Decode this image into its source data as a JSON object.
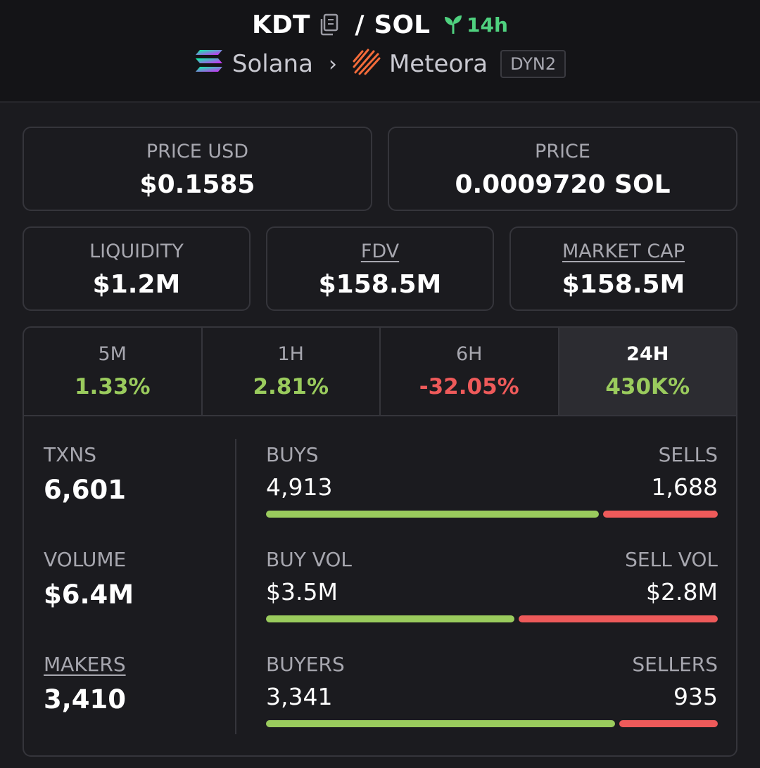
{
  "header": {
    "base_token": "KDT",
    "slash": "/",
    "quote_token": "SOL",
    "age": "14h",
    "chain": "Solana",
    "dex": "Meteora",
    "dex_badge": "DYN2"
  },
  "cards": {
    "price_usd": {
      "label": "PRICE USD",
      "value": "$0.1585"
    },
    "price": {
      "label": "PRICE",
      "value": "0.0009720 SOL"
    },
    "liquidity": {
      "label": "LIQUIDITY",
      "value": "$1.2M"
    },
    "fdv": {
      "label": "FDV",
      "value": "$158.5M"
    },
    "market_cap": {
      "label": "MARKET CAP",
      "value": "$158.5M"
    }
  },
  "tabs": [
    {
      "label": "5M",
      "value": "1.33%"
    },
    {
      "label": "1H",
      "value": "2.81%"
    },
    {
      "label": "6H",
      "value": "-32.05%"
    },
    {
      "label": "24H",
      "value": "430K%"
    }
  ],
  "stats": {
    "txns": {
      "label": "TXNS",
      "value": "6,601"
    },
    "volume": {
      "label": "VOLUME",
      "value": "$6.4M"
    },
    "makers": {
      "label": "MAKERS",
      "value": "3,410"
    }
  },
  "splits": {
    "buys_sells": {
      "left_label": "BUYS",
      "right_label": "SELLS",
      "left_value": "4,913",
      "right_value": "1,688",
      "left_ratio": 0.744
    },
    "volume": {
      "left_label": "BUY VOL",
      "right_label": "SELL VOL",
      "left_value": "$3.5M",
      "right_value": "$2.8M",
      "left_ratio": 0.555
    },
    "buyers_sellers": {
      "left_label": "BUYERS",
      "right_label": "SELLERS",
      "left_value": "3,341",
      "right_value": "935",
      "left_ratio": 0.78
    }
  },
  "colors": {
    "positive": "#9acb5d",
    "negative": "#ee5a5a",
    "age": "#4fd17f"
  }
}
